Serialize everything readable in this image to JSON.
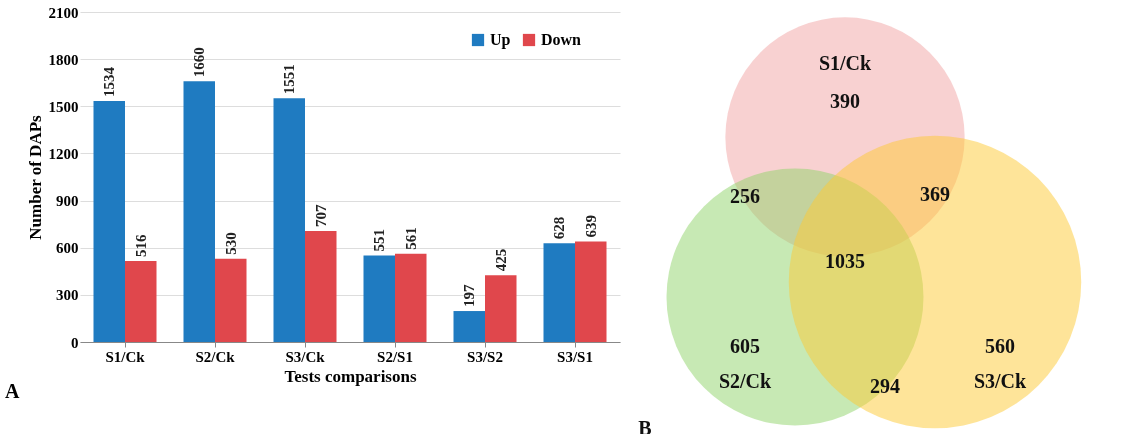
{
  "chart_data": [
    {
      "type": "bar",
      "categories": [
        "S1/Ck",
        "S2/Ck",
        "S3/Ck",
        "S2/S1",
        "S3/S2",
        "S3/S1"
      ],
      "series": [
        {
          "name": "Up",
          "color": "#1f7bc1",
          "values": [
            1534,
            1660,
            1551,
            551,
            197,
            628
          ]
        },
        {
          "name": "Down",
          "color": "#e0474c",
          "values": [
            516,
            530,
            707,
            561,
            425,
            639
          ]
        }
      ],
      "xlabel": "Tests comparisons",
      "ylabel": "Number of DAPs",
      "ylim": [
        0,
        2100
      ],
      "yticks": [
        0,
        300,
        600,
        900,
        1200,
        1500,
        1800,
        2100
      ],
      "grid": "y",
      "legend": "top right",
      "data_labels": true,
      "annotations": [
        "A"
      ]
    },
    {
      "type": "other",
      "categories": [
        "S1/Ck",
        "S2/Ck",
        "S3/Ck"
      ],
      "values": [
        390,
        605,
        560
      ],
      "colors": [
        "#f2a3a3",
        "#8fd46a",
        "#fdc933"
      ],
      "data_labels": true,
      "annotations": [
        "256",
        "369",
        "294",
        "1035",
        "B"
      ]
    }
  ]
}
